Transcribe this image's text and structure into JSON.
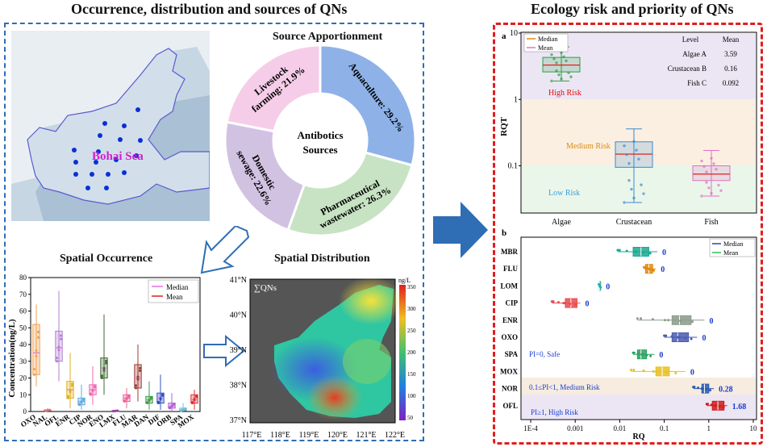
{
  "left_title": "Occurrence, distribution and sources of QNs",
  "right_title": "Ecology risk and priority of QNs",
  "map": {
    "sea_label": "Bohai Sea"
  },
  "source": {
    "title": "Source Apportionment",
    "center_line1": "Antibotics",
    "center_line2": "Sources",
    "slices": [
      {
        "label_line1": "Aquaculture: 29.2%",
        "label_line2": "",
        "value": 29.2,
        "color": "#8eb2e8"
      },
      {
        "label_line1": "Pharmaceutical",
        "label_line2": "wastewater: 26.3%",
        "value": 26.3,
        "color": "#c8e3c4"
      },
      {
        "label_line1": "Domestic",
        "label_line2": "sewage: 22.6%",
        "value": 22.6,
        "color": "#d2c2e2"
      },
      {
        "label_line1": "Livestock",
        "label_line2": "farming: 21.9%",
        "value": 21.9,
        "color": "#f6cde8"
      }
    ]
  },
  "spatial_occurrence": {
    "title": "Spatial Occurrence",
    "ylabel": "Concentration(ng/L)",
    "yticks": [
      "0",
      "10",
      "20",
      "30",
      "40",
      "50",
      "60",
      "70",
      "80"
    ],
    "legend_median": "Median",
    "legend_mean": "Mean"
  },
  "spatial_distribution": {
    "title": "Spatial Distribution",
    "map_label": "∑QNs",
    "unit": "ng/L",
    "lat_labels": [
      "41°N",
      "40°N",
      "39°N",
      "38°N",
      "37°N"
    ],
    "lon_labels": [
      "117°E",
      "118°E",
      "119°E",
      "120°E",
      "121°E",
      "122°E"
    ],
    "colorbar_ticks": [
      "350",
      "300",
      "250",
      "200",
      "150",
      "100",
      "50"
    ]
  },
  "chart_data": [
    {
      "type": "box",
      "title": "Spatial Occurrence",
      "ylabel": "Concentration(ng/L)",
      "ylim": [
        0,
        80
      ],
      "categories": [
        "OXO",
        "NAL",
        "OFL",
        "ENR",
        "CIP",
        "NOR",
        "ENO",
        "LMX",
        "FLU",
        "MAR",
        "DAN",
        "DIF",
        "ORB",
        "SPA",
        "MOX"
      ],
      "q1": [
        22,
        0.5,
        30,
        8,
        4,
        10,
        20,
        0.2,
        6,
        14,
        5,
        5,
        2,
        0.5,
        5
      ],
      "median": [
        35,
        0.8,
        38,
        13,
        6,
        13,
        26,
        0.3,
        8,
        20,
        7,
        8,
        3,
        1,
        7
      ],
      "q3": [
        52,
        1,
        48,
        18,
        8,
        16,
        32,
        0.5,
        10,
        28,
        9,
        11,
        5,
        2,
        10
      ],
      "min": [
        15,
        0,
        18,
        2,
        1,
        4,
        10,
        0,
        2,
        6,
        1,
        1,
        0,
        0,
        1
      ],
      "max": [
        64,
        2,
        72,
        35,
        16,
        27,
        58,
        1,
        14,
        40,
        18,
        22,
        11,
        5,
        13
      ],
      "colors": [
        "#f0a050",
        "#e07070",
        "#b080d0",
        "#e0b020",
        "#5aaee0",
        "#f06ab0",
        "#406a30",
        "#9040a0",
        "#f06090",
        "#9a3a30",
        "#3aa040",
        "#3050c0",
        "#b060d0",
        "#70c0d0",
        "#e03030"
      ]
    },
    {
      "type": "box",
      "title": "Ecology risk and priority of QNs (a)",
      "ylabel": "RQT",
      "yscale": "log",
      "ylim": [
        0.02,
        10
      ],
      "categories": [
        "Algae",
        "Crustacean",
        "Fish"
      ],
      "q1": [
        2.6,
        0.095,
        0.06
      ],
      "median": [
        3.3,
        0.15,
        0.075
      ],
      "q3": [
        4.3,
        0.23,
        0.1
      ],
      "min": [
        1.9,
        0.028,
        0.035
      ],
      "max": [
        6.2,
        0.36,
        0.17
      ],
      "mean_table": {
        "header_level": "Level",
        "header_mean": "Mean",
        "rows": [
          {
            "level": "Algae A",
            "mean": "3.59"
          },
          {
            "level": "Crustacean B",
            "mean": "0.16"
          },
          {
            "level": "Fish C",
            "mean": "0.092"
          }
        ]
      },
      "bands": [
        "High Risk",
        "Medium Risk",
        "Low Risk"
      ],
      "legend": [
        "Median",
        "Mean"
      ],
      "yticks": [
        "10",
        "1",
        "0.1"
      ]
    },
    {
      "type": "box",
      "title": "Ecology risk and priority of QNs (b)",
      "xlabel": "RQ",
      "xscale": "log",
      "xlim": [
        0.0001,
        10
      ],
      "categories": [
        "MBR",
        "FLU",
        "LOM",
        "CIP",
        "ENR",
        "OXO",
        "SPA",
        "MOX",
        "NOR",
        "OFL"
      ],
      "pi_values": [
        "0",
        "0",
        "0",
        "0",
        "0",
        "0",
        "0",
        "0",
        "0.28",
        "1.68"
      ],
      "q1": [
        0.02,
        0.038,
        0.0035,
        0.0006,
        0.15,
        0.15,
        0.025,
        0.065,
        0.7,
        1.2
      ],
      "median": [
        0.03,
        0.045,
        0.0035,
        0.0008,
        0.22,
        0.2,
        0.03,
        0.09,
        0.8,
        1.6
      ],
      "q3": [
        0.045,
        0.055,
        0.0036,
        0.0011,
        0.4,
        0.35,
        0.04,
        0.13,
        1.0,
        2.2
      ],
      "min": [
        0.009,
        0.035,
        0.0034,
        0.0003,
        0.025,
        0.1,
        0.02,
        0.018,
        0.45,
        0.9
      ],
      "max": [
        0.07,
        0.065,
        0.0038,
        0.0013,
        0.8,
        0.55,
        0.06,
        0.3,
        1.3,
        2.6
      ],
      "colors": [
        "#1aa890",
        "#e08a10",
        "#2ab0a0",
        "#e84a50",
        "#8a9a8a",
        "#4a5ab0",
        "#2aa060",
        "#e8c020",
        "#2a5ab0",
        "#d01a1a"
      ],
      "xticks": [
        "1E-4",
        "0.001",
        "0.01",
        "0.1",
        "1",
        "10"
      ],
      "bands": [
        "PI=0, Safe",
        "0.1≤PI<1, Medium Risk",
        "PI≥1, High Risk"
      ],
      "legend": [
        "Median",
        "Mean"
      ]
    }
  ],
  "colors": {
    "panel_left_border": "#2f6db5",
    "panel_right_border": "#e21d1d",
    "arrow": "#2f6db5"
  },
  "labels": {
    "a": "a",
    "b": "b"
  }
}
